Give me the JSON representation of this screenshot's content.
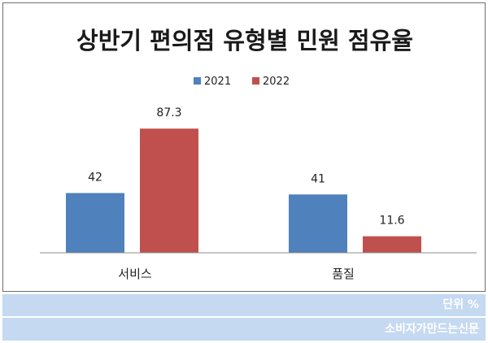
{
  "chart_data": {
    "type": "bar",
    "title": "상반기 편의점 유형별 민원 점유율",
    "categories": [
      "서비스",
      "품질"
    ],
    "series": [
      {
        "name": "2021",
        "values": [
          42,
          41
        ],
        "color": "#4f81bd"
      },
      {
        "name": "2022",
        "values": [
          87.3,
          11.6
        ],
        "color": "#c0504d"
      }
    ],
    "data_labels": [
      [
        "42",
        "41"
      ],
      [
        "87.3",
        "11.6"
      ]
    ],
    "ylim": [
      0,
      100
    ],
    "legend": "top-center",
    "grid": false
  },
  "footer": {
    "unit": "단위 %",
    "source": "소비자가만드는신문"
  },
  "colors": {
    "band": "#c5d9f1",
    "axis": "#8c8c8c"
  }
}
